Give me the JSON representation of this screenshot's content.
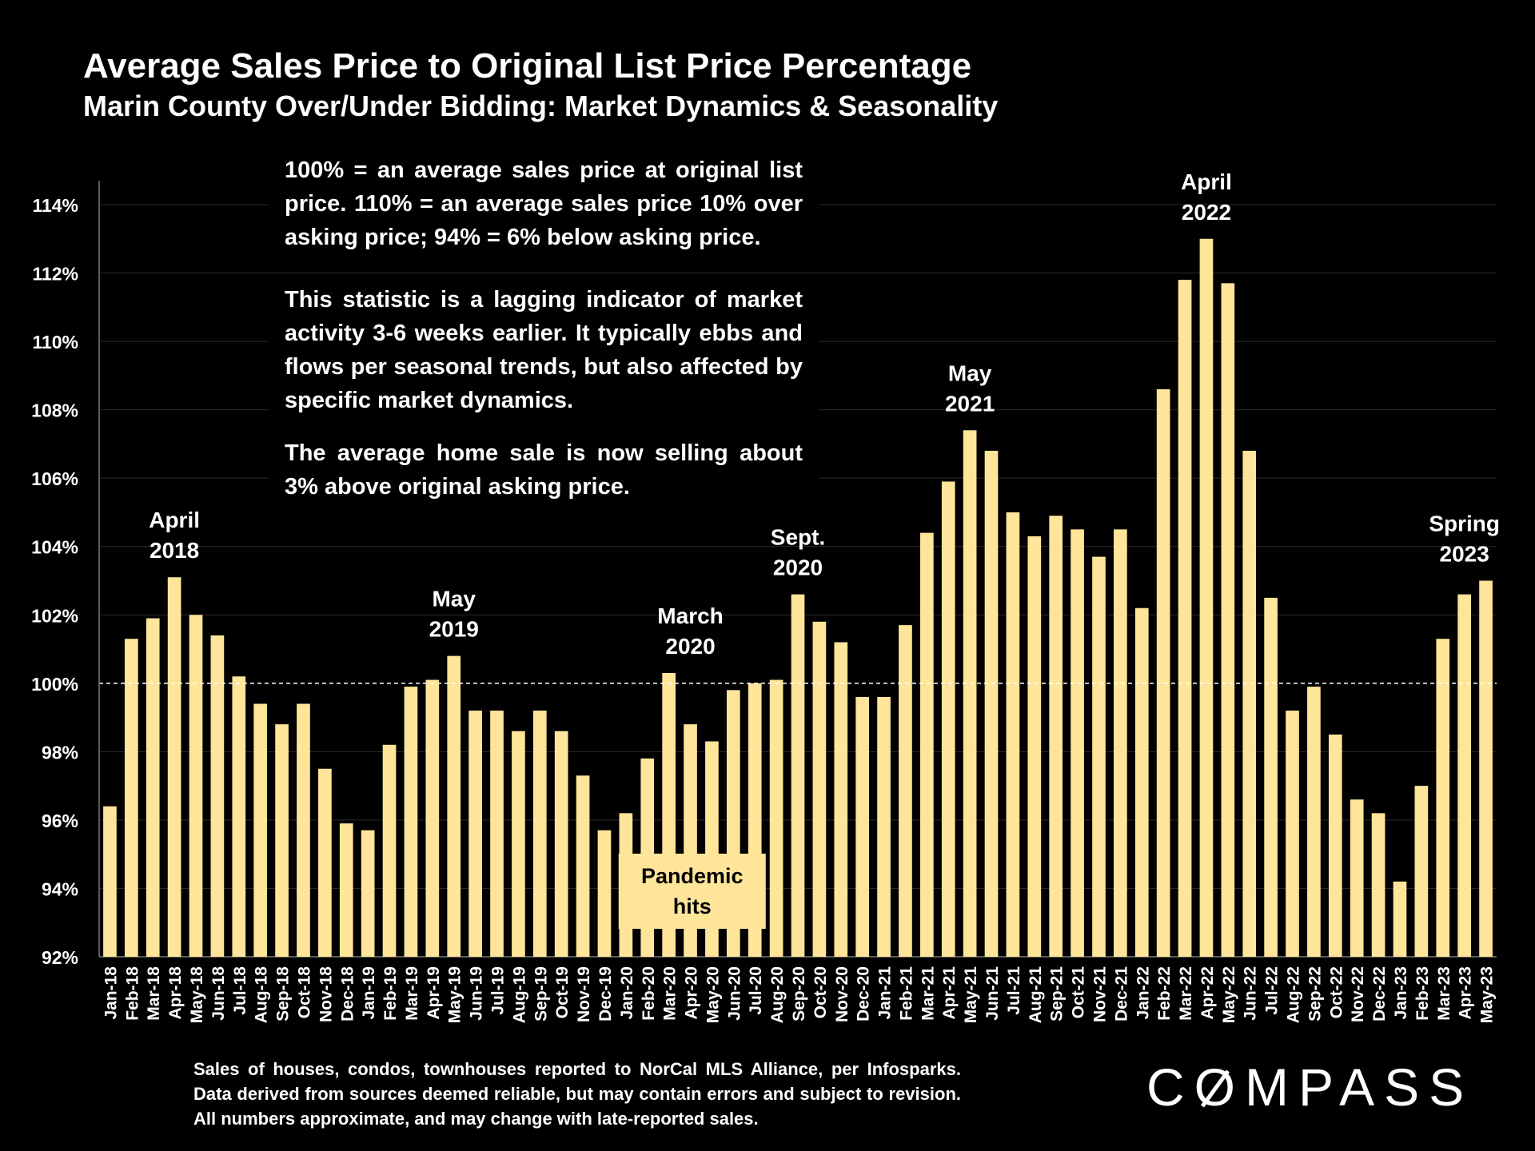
{
  "title": "Average Sales Price to Original List Price Percentage",
  "subtitle": "Marin County Over/Under Bidding: Market Dynamics & Seasonality",
  "notes": {
    "p1": "100% = an average sales price at original list price. 110% = an average sales price 10% over asking price; 94% = 6% below asking price.",
    "p2": "This statistic is a lagging indicator of market activity 3-6 weeks earlier. It typically ebbs and flows per seasonal trends, but also affected by specific market dynamics.",
    "p3": "The average home sale is now selling about 3% above original asking price."
  },
  "source": "Sales of houses, condos, townhouses reported to NorCal MLS Alliance, per Infosparks. Data derived from sources deemed reliable, but may contain errors and subject to revision. All numbers approximate, and may change with late-reported sales.",
  "logo": {
    "pre": "C",
    "mid": "O",
    "post": "MPASS"
  },
  "colors": {
    "bar": "#FFE599",
    "background": "#000000",
    "text": "#FFFFFF"
  },
  "chart_data": {
    "type": "bar",
    "title": "Average Sales Price to Original List Price Percentage",
    "ylabel": "",
    "xlabel": "",
    "ylim": [
      92,
      114
    ],
    "yticks": [
      92,
      94,
      96,
      98,
      100,
      102,
      104,
      106,
      108,
      110,
      112,
      114
    ],
    "ytick_labels": [
      "92%",
      "94%",
      "96%",
      "98%",
      "100%",
      "102%",
      "104%",
      "106%",
      "108%",
      "110%",
      "112%",
      "114%"
    ],
    "reference_line": 100,
    "categories": [
      "Jan-18",
      "Feb-18",
      "Mar-18",
      "Apr-18",
      "May-18",
      "Jun-18",
      "Jul-18",
      "Aug-18",
      "Sep-18",
      "Oct-18",
      "Nov-18",
      "Dec-18",
      "Jan-19",
      "Feb-19",
      "Mar-19",
      "Apr-19",
      "May-19",
      "Jun-19",
      "Jul-19",
      "Aug-19",
      "Sep-19",
      "Oct-19",
      "Nov-19",
      "Dec-19",
      "Jan-20",
      "Feb-20",
      "Mar-20",
      "Apr-20",
      "May-20",
      "Jun-20",
      "Jul-20",
      "Aug-20",
      "Sep-20",
      "Oct-20",
      "Nov-20",
      "Dec-20",
      "Jan-21",
      "Feb-21",
      "Mar-21",
      "Apr-21",
      "May-21",
      "Jun-21",
      "Jul-21",
      "Aug-21",
      "Sep-21",
      "Oct-21",
      "Nov-21",
      "Dec-21",
      "Jan-22",
      "Feb-22",
      "Mar-22",
      "Apr-22",
      "May-22",
      "Jun-22",
      "Jul-22",
      "Aug-22",
      "Sep-22",
      "Oct-22",
      "Nov-22",
      "Dec-22",
      "Jan-23",
      "Feb-23",
      "Mar-23",
      "Apr-23",
      "May-23"
    ],
    "values": [
      96.4,
      101.3,
      101.9,
      103.1,
      102.0,
      101.4,
      100.2,
      99.4,
      98.8,
      99.4,
      97.5,
      95.9,
      95.7,
      98.2,
      99.9,
      100.1,
      100.8,
      99.2,
      99.2,
      98.6,
      99.2,
      98.6,
      97.3,
      95.7,
      96.2,
      97.8,
      100.3,
      98.8,
      98.3,
      99.8,
      100.0,
      100.1,
      102.6,
      101.8,
      101.2,
      99.6,
      99.6,
      101.7,
      104.4,
      105.9,
      107.4,
      106.8,
      105.0,
      104.3,
      104.9,
      104.5,
      103.7,
      104.5,
      102.2,
      108.6,
      111.8,
      113.0,
      111.7,
      106.8,
      102.5,
      99.2,
      99.9,
      98.5,
      96.6,
      96.2,
      94.2,
      97.0,
      101.3,
      102.6,
      103.0
    ],
    "annotations": [
      {
        "text": [
          "April",
          "2018"
        ],
        "category": "Apr-18"
      },
      {
        "text": [
          "May",
          "2019"
        ],
        "category": "May-19"
      },
      {
        "text": [
          "March",
          "2020"
        ],
        "category": "Apr-20"
      },
      {
        "text": [
          "Sept.",
          "2020"
        ],
        "category": "Sep-20"
      },
      {
        "text": [
          "May",
          "2021"
        ],
        "category": "May-21"
      },
      {
        "text": [
          "April",
          "2022"
        ],
        "category": "Apr-22"
      },
      {
        "text": [
          "Spring",
          "2023"
        ],
        "category": "Apr-23"
      }
    ],
    "callout": {
      "text": [
        "Pandemic",
        "hits"
      ],
      "category": "Feb-20"
    }
  }
}
